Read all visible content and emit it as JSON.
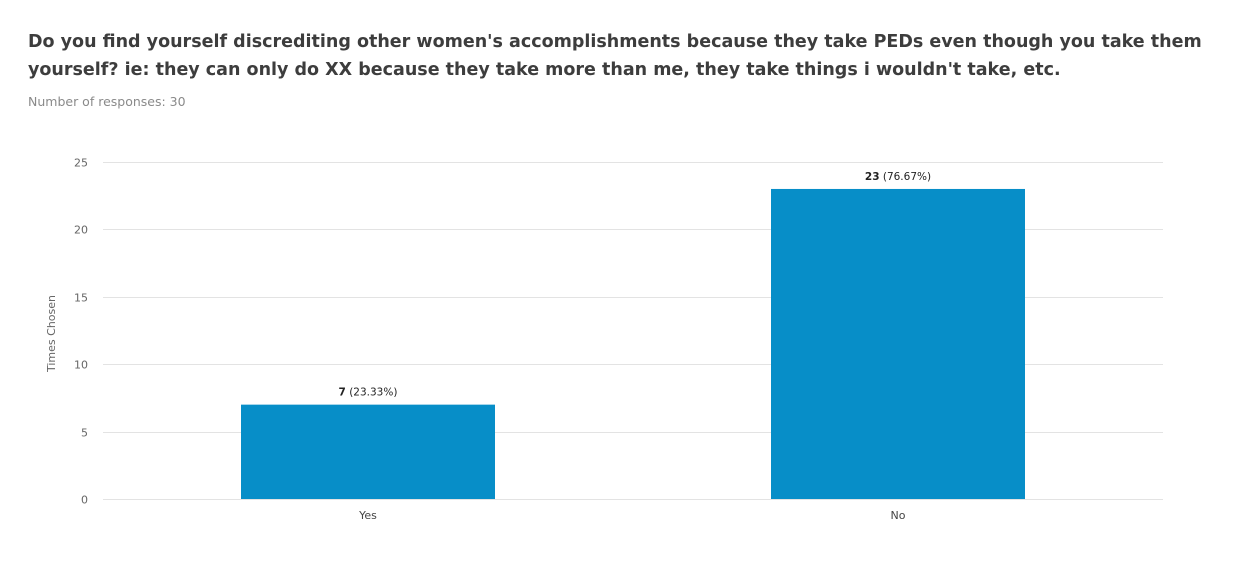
{
  "question": "Do you find yourself discrediting other women's accomplishments because they take PEDs even though you take them yourself? ie: they can only do XX because they take more than me, they take things i wouldn't take, etc.",
  "responses_label": "Number of responses: 30",
  "chart_data": {
    "type": "bar",
    "categories": [
      "Yes",
      "No"
    ],
    "values": [
      7,
      23
    ],
    "value_labels": [
      {
        "count": "7",
        "percent": "(23.33%)"
      },
      {
        "count": "23",
        "percent": "(76.67%)"
      }
    ],
    "ylabel": "Times Chosen",
    "xlabel": "",
    "ylim": [
      0,
      25
    ],
    "yticks": [
      0,
      5,
      10,
      15,
      20,
      25
    ],
    "grid": true,
    "bar_color": "#078ec8",
    "grid_color": "#e3e3e3"
  }
}
